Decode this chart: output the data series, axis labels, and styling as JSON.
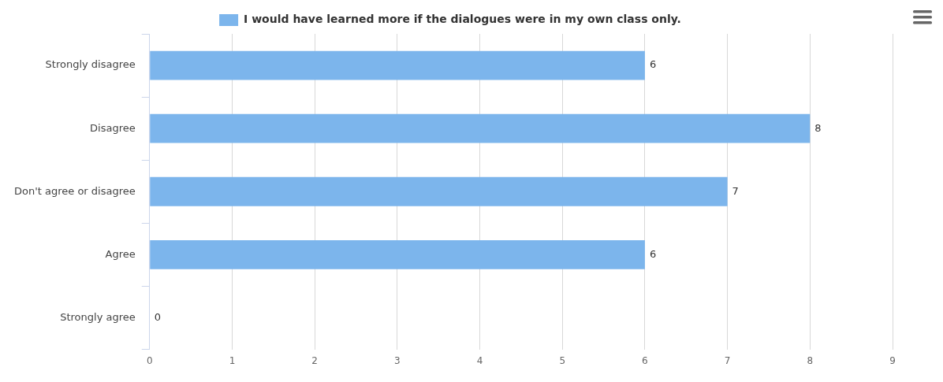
{
  "chart_data": {
    "type": "bar",
    "orientation": "horizontal",
    "categories": [
      "Strongly disagree",
      "Disagree",
      "Don't agree or disagree",
      "Agree",
      "Strongly agree"
    ],
    "series": [
      {
        "name": "I would have learned more if the dialogues were in my own class only.",
        "color": "#7cb5ec",
        "values": [
          6,
          8,
          7,
          6,
          0
        ]
      }
    ],
    "xlim": [
      0,
      9
    ],
    "xticks": [
      0,
      1,
      2,
      3,
      4,
      5,
      6,
      7,
      8,
      9
    ],
    "grid": "x",
    "legend": "top",
    "data_labels": true
  }
}
